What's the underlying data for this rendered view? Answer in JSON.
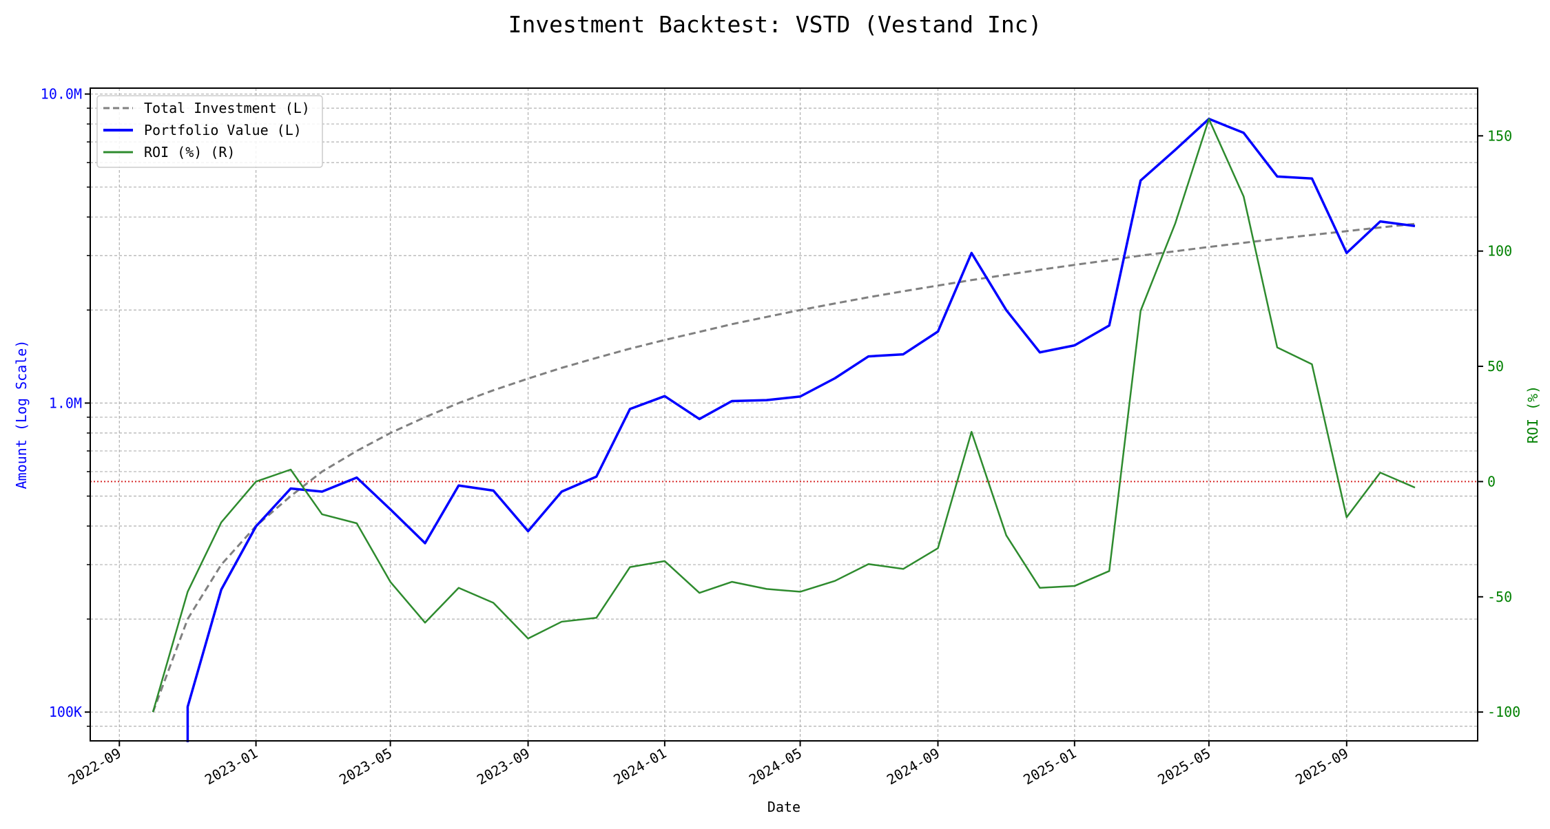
{
  "chart_data": {
    "type": "line",
    "title": "Investment Backtest: VSTD (Vestand Inc)",
    "xlabel": "Date",
    "ylabel_left": "Amount (Log Scale)",
    "ylabel_right": "ROI (%)",
    "y_left_scale": "log",
    "xlim": [
      "2022-08-06",
      "2025-12-27"
    ],
    "ylim_left": [
      80700,
      10450000
    ],
    "ylim_right": [
      -112.5,
      170.7
    ],
    "grid": true,
    "legend_position": "upper-left",
    "x_ticks": [
      "2022-09",
      "2023-01",
      "2023-05",
      "2023-09",
      "2024-01",
      "2024-05",
      "2024-09",
      "2025-01",
      "2025-05",
      "2025-09"
    ],
    "y_left_ticks": [
      {
        "value": 100000,
        "label": "100K"
      },
      {
        "value": 1000000,
        "label": "1.0M"
      },
      {
        "value": 10000000,
        "label": "10.0M"
      }
    ],
    "y_right_ticks": [
      {
        "value": -100,
        "label": "-100"
      },
      {
        "value": -50,
        "label": "-50"
      },
      {
        "value": 0,
        "label": "0"
      },
      {
        "value": 50,
        "label": "50"
      },
      {
        "value": 100,
        "label": "100"
      },
      {
        "value": 150,
        "label": "150"
      }
    ],
    "reference_line": {
      "axis": "right",
      "value": 0,
      "color": "#d62728",
      "style": "dotted"
    },
    "x": [
      "2022-10",
      "2022-11",
      "2022-12",
      "2023-01",
      "2023-02",
      "2023-03",
      "2023-04",
      "2023-05",
      "2023-06",
      "2023-07",
      "2023-08",
      "2023-09",
      "2023-10",
      "2023-11",
      "2023-12",
      "2024-01",
      "2024-02",
      "2024-03",
      "2024-04",
      "2024-05",
      "2024-06",
      "2024-07",
      "2024-08",
      "2024-09",
      "2024-10",
      "2024-11",
      "2024-12",
      "2025-01",
      "2025-02",
      "2025-03",
      "2025-04",
      "2025-05",
      "2025-06",
      "2025-07",
      "2025-08",
      "2025-09",
      "2025-10",
      "2025-11"
    ],
    "series": [
      {
        "name": "Total Investment (L)",
        "axis": "left",
        "color": "#808080",
        "style": "dashed",
        "values": [
          100000,
          200000,
          300000,
          400000,
          500000,
          600000,
          700000,
          800000,
          900000,
          1000000,
          1100000,
          1200000,
          1300000,
          1400000,
          1500000,
          1600000,
          1700000,
          1800000,
          1900000,
          2000000,
          2100000,
          2200000,
          2300000,
          2400000,
          2500000,
          2600000,
          2700000,
          2800000,
          2900000,
          3000000,
          3100000,
          3200000,
          3300000,
          3400000,
          3500000,
          3600000,
          3700000,
          3800000
        ]
      },
      {
        "name": "Portfolio Value (L)",
        "axis": "left",
        "color": "#0000ff",
        "style": "solid",
        "values": [
          0,
          104000,
          249000,
          399000,
          529000,
          517000,
          574000,
          453000,
          352000,
          541000,
          521000,
          385000,
          517000,
          578000,
          957000,
          1053000,
          888000,
          1015000,
          1022000,
          1050000,
          1203000,
          1416000,
          1438000,
          1704000,
          3060000,
          2000000,
          1459000,
          1537000,
          1782000,
          5250000,
          6600000,
          8310000,
          7490000,
          5410000,
          5330000,
          3060000,
          3870000,
          3740000
        ]
      },
      {
        "name": "ROI (%) (R)",
        "axis": "right",
        "color": "#2e8b2e",
        "style": "solid",
        "values": [
          -100,
          -47.8,
          -17.7,
          0,
          5.2,
          -14.2,
          -18.1,
          -43.5,
          -61.2,
          -46.1,
          -52.6,
          -68.1,
          -60.8,
          -59.1,
          -37.1,
          -34.5,
          -48.3,
          -43.5,
          -46.6,
          -47.8,
          -43.1,
          -35.8,
          -37.9,
          -28.9,
          21.6,
          -23.3,
          -46.1,
          -45.3,
          -38.8,
          74.1,
          112.1,
          157.3,
          123.7,
          58.2,
          50.9,
          -15.5,
          3.9,
          -2.6
        ]
      }
    ],
    "colors": {
      "left_axis": "#0000ff",
      "right_axis": "#008000"
    }
  }
}
